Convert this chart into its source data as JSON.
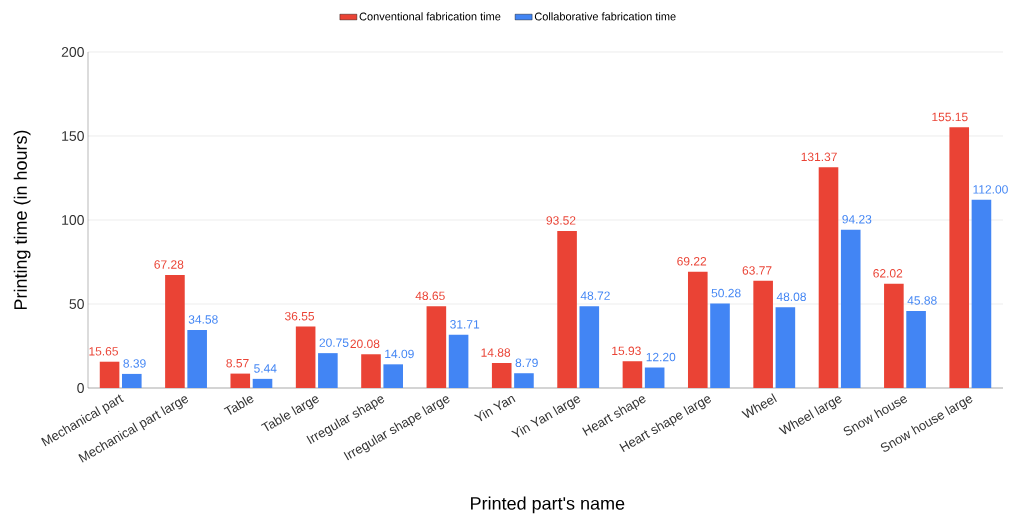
{
  "chart_data": {
    "type": "bar",
    "xlabel": "Printed part's name",
    "ylabel": "Printing time (in hours)",
    "categories": [
      "Mechanical part",
      "Mechanical part large",
      "Table",
      "Table large",
      "Irregular shape",
      "Irregular shape large",
      "Yin Yan",
      "Yin Yan large",
      "Heart shape",
      "Heart shape large",
      "Wheel",
      "Wheel large",
      "Snow house",
      "Snow house large"
    ],
    "series": [
      {
        "name": "Conventional fabrication time",
        "color": "#ea4335",
        "values": [
          15.65,
          67.28,
          8.57,
          36.55,
          20.08,
          48.65,
          14.88,
          93.52,
          15.93,
          69.22,
          63.77,
          131.37,
          62.02,
          155.15
        ],
        "value_labels": [
          "15.65",
          "67.28",
          "8.57",
          "36.55",
          "20.08",
          "48.65",
          "14.88",
          "93.52",
          "15.93",
          "69.22",
          "63.77",
          "131.37",
          "62.02",
          "155.15"
        ]
      },
      {
        "name": "Collaborative fabrication time",
        "color": "#4285f4",
        "values": [
          8.39,
          34.58,
          5.44,
          20.75,
          14.09,
          31.71,
          8.79,
          48.72,
          12.2,
          50.28,
          48.08,
          94.23,
          45.88,
          112.0
        ],
        "value_labels": [
          "8.39",
          "34.58",
          "5.44",
          "20.75",
          "14.09",
          "31.71",
          "8.79",
          "48.72",
          "12.20",
          "50.28",
          "48.08",
          "94.23",
          "45.88",
          "112.00"
        ]
      }
    ],
    "ylim": [
      0,
      200
    ],
    "yticks": [
      0,
      50,
      100,
      150,
      200
    ],
    "grid": "y",
    "legend": "top"
  }
}
